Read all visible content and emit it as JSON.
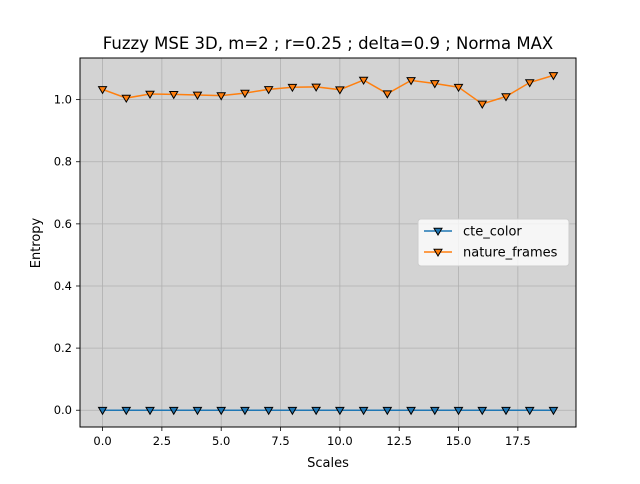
{
  "chart_data": {
    "type": "line",
    "title": "Fuzzy MSE 3D, m=2 ; r=0.25 ; delta=0.9 ; Norma MAX",
    "xlabel": "Scales",
    "ylabel": "Entropy",
    "xlim": [
      -0.95,
      19.95
    ],
    "ylim": [
      -0.054,
      1.134
    ],
    "x_ticks": [
      0.0,
      2.5,
      5.0,
      7.5,
      10.0,
      12.5,
      15.0,
      17.5
    ],
    "x_tick_labels": [
      "0.0",
      "2.5",
      "5.0",
      "7.5",
      "10.0",
      "12.5",
      "15.0",
      "17.5"
    ],
    "y_ticks": [
      0.0,
      0.2,
      0.4,
      0.6,
      0.8,
      1.0
    ],
    "y_tick_labels": [
      "0.0",
      "0.2",
      "0.4",
      "0.6",
      "0.8",
      "1.0"
    ],
    "grid": true,
    "axes_background": "#d3d3d3",
    "legend_position": "center-right",
    "marker": "triangle-down",
    "x": [
      0,
      1,
      2,
      3,
      4,
      5,
      6,
      7,
      8,
      9,
      10,
      11,
      12,
      13,
      14,
      15,
      16,
      17,
      18,
      19
    ],
    "series": [
      {
        "name": "cte_color",
        "color": "#1f77b4",
        "values": [
          0,
          0,
          0,
          0,
          0,
          0,
          0,
          0,
          0,
          0,
          0,
          0,
          0,
          0,
          0,
          0,
          0,
          0,
          0,
          0
        ]
      },
      {
        "name": "nature_frames",
        "color": "#ff7f0e",
        "values": [
          1.033,
          1.005,
          1.018,
          1.017,
          1.015,
          1.013,
          1.021,
          1.033,
          1.04,
          1.041,
          1.032,
          1.063,
          1.019,
          1.062,
          1.052,
          1.04,
          0.986,
          1.01,
          1.055,
          1.078
        ]
      }
    ]
  }
}
